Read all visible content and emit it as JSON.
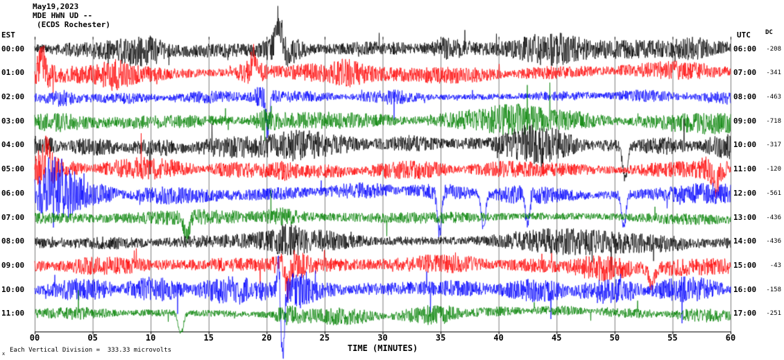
{
  "header": {
    "date": "May19,2023",
    "station": "MDE HWN UD --",
    "location": "(ECDS Rochester)"
  },
  "axis": {
    "left_tz": "EST",
    "right_tz": "UTC",
    "dc_label": "DC"
  },
  "footer": {
    "marker": "x",
    "scale_note": "Each Vertical Division =  333.33 microvolts"
  },
  "chart_data": {
    "type": "line",
    "title": "May19,2023 MDE HWN UD -- (ECDS Rochester)",
    "x_label": "TIME (MINUTES)",
    "x_range": [
      0,
      60
    ],
    "x_ticks": [
      "00",
      "05",
      "10",
      "15",
      "20",
      "25",
      "30",
      "35",
      "40",
      "45",
      "50",
      "55",
      "60"
    ],
    "grid": "vertical lines every 5 minutes",
    "microvolts_per_division": "333.33",
    "colors": {
      "black": "#000000",
      "red": "#ff0000",
      "blue": "#0000ff",
      "green": "#008000"
    },
    "rows": [
      {
        "est": "00:00",
        "utc": "06:00",
        "dc": "-208",
        "color": "black",
        "amp": 12,
        "seed": 101,
        "events": [
          {
            "type": "burst",
            "t": 9.5,
            "w": 2.2,
            "a": 14
          },
          {
            "type": "burst",
            "t": 21.5,
            "w": 1.6,
            "a": 20
          },
          {
            "type": "spike",
            "t": 21.0,
            "w": 0.35,
            "a": 42,
            "dir": -1
          },
          {
            "type": "burst",
            "t": 35.5,
            "w": 1.5,
            "a": 10
          },
          {
            "type": "burst",
            "t": 44.5,
            "w": 3,
            "a": 16
          },
          {
            "type": "burst",
            "t": 57,
            "w": 2,
            "a": 10
          }
        ]
      },
      {
        "est": "01:00",
        "utc": "07:00",
        "dc": "-341",
        "color": "red",
        "amp": 11,
        "seed": 202,
        "events": [
          {
            "type": "burst",
            "t": 0.7,
            "w": 0.7,
            "a": 16
          },
          {
            "type": "spike",
            "t": 0.6,
            "w": 0.3,
            "a": 22,
            "dir": -1
          },
          {
            "type": "burst",
            "t": 7,
            "w": 1.2,
            "a": 10
          },
          {
            "type": "burst",
            "t": 18.6,
            "w": 1.4,
            "a": 14
          },
          {
            "type": "spike",
            "t": 18.9,
            "w": 0.25,
            "a": 26,
            "dir": -1
          },
          {
            "type": "burst",
            "t": 27,
            "w": 1,
            "a": 8
          }
        ]
      },
      {
        "est": "02:00",
        "utc": "08:00",
        "dc": "-463",
        "color": "blue",
        "amp": 9,
        "seed": 303,
        "events": [
          {
            "type": "burst",
            "t": 2.5,
            "w": 1.2,
            "a": 8
          },
          {
            "type": "burst",
            "t": 19.6,
            "w": 0.9,
            "a": 12
          },
          {
            "type": "spike",
            "t": 20.1,
            "w": 0.22,
            "a": 48,
            "dir": 1
          },
          {
            "type": "burst",
            "t": 31,
            "w": 2,
            "a": 5
          }
        ]
      },
      {
        "est": "03:00",
        "utc": "09:00",
        "dc": "-718",
        "color": "green",
        "amp": 12,
        "seed": 404,
        "events": [
          {
            "type": "burst",
            "t": 2.5,
            "w": 2.5,
            "a": 7
          },
          {
            "type": "burst",
            "t": 20,
            "w": 1.2,
            "a": 8
          },
          {
            "type": "burst",
            "t": 41,
            "w": 2,
            "a": 6
          }
        ]
      },
      {
        "est": "04:00",
        "utc": "10:00",
        "dc": "-317",
        "color": "black",
        "amp": 15,
        "seed": 505,
        "events": [
          {
            "type": "burst",
            "t": 22.5,
            "w": 2.5,
            "a": 12
          },
          {
            "type": "burst",
            "t": 43,
            "w": 3,
            "a": 10
          },
          {
            "type": "spike",
            "t": 50.9,
            "w": 0.3,
            "a": 46,
            "dir": 1
          }
        ]
      },
      {
        "est": "05:00",
        "utc": "11:00",
        "dc": "-120",
        "color": "red",
        "amp": 12,
        "seed": 606,
        "events": [
          {
            "type": "burst",
            "t": 0.9,
            "w": 0.8,
            "a": 18
          },
          {
            "type": "spike",
            "t": 1.0,
            "w": 0.3,
            "a": 26,
            "dir": -1
          },
          {
            "type": "burst",
            "t": 21.5,
            "w": 1,
            "a": 10
          },
          {
            "type": "burst",
            "t": 58.5,
            "w": 1.2,
            "a": 14
          },
          {
            "type": "spike",
            "t": 58.8,
            "w": 0.3,
            "a": 22,
            "dir": 1
          }
        ]
      },
      {
        "est": "06:00",
        "utc": "12:00",
        "dc": "-561",
        "color": "blue",
        "amp": 13,
        "seed": 707,
        "events": [
          {
            "type": "burst",
            "t": 1.8,
            "w": 1.7,
            "a": 34
          },
          {
            "type": "spike",
            "t": 1.4,
            "w": 0.5,
            "a": 22,
            "dir": -1
          },
          {
            "type": "spike",
            "t": 34.9,
            "w": 0.25,
            "a": 58,
            "dir": 1
          },
          {
            "type": "spike",
            "t": 38.7,
            "w": 0.25,
            "a": 52,
            "dir": 1
          },
          {
            "type": "spike",
            "t": 42.5,
            "w": 0.22,
            "a": 44,
            "dir": 1
          },
          {
            "type": "spike",
            "t": 50.8,
            "w": 0.25,
            "a": 48,
            "dir": 1
          }
        ]
      },
      {
        "est": "07:00",
        "utc": "13:00",
        "dc": "-436",
        "color": "green",
        "amp": 11,
        "seed": 808,
        "events": [
          {
            "type": "spike",
            "t": 13.1,
            "w": 0.35,
            "a": 26,
            "dir": 1
          },
          {
            "type": "burst",
            "t": 21.5,
            "w": 1.5,
            "a": 7
          }
        ]
      },
      {
        "est": "08:00",
        "utc": "14:00",
        "dc": "-436",
        "color": "black",
        "amp": 13,
        "seed": 909,
        "events": [
          {
            "type": "burst",
            "t": 21.8,
            "w": 1.2,
            "a": 8
          },
          {
            "type": "burst",
            "t": 47,
            "w": 4,
            "a": 6
          }
        ]
      },
      {
        "est": "09:00",
        "utc": "15:00",
        "dc": "-43",
        "color": "red",
        "amp": 14,
        "seed": 1010,
        "events": [
          {
            "type": "burst",
            "t": 22.2,
            "w": 1.8,
            "a": 15
          },
          {
            "type": "spike",
            "t": 21.8,
            "w": 0.3,
            "a": 34,
            "dir": 1
          },
          {
            "type": "burst",
            "t": 49,
            "w": 3,
            "a": 10
          },
          {
            "type": "spike",
            "t": 53.2,
            "w": 0.3,
            "a": 26,
            "dir": 1
          }
        ]
      },
      {
        "est": "10:00",
        "utc": "16:00",
        "dc": "-158",
        "color": "blue",
        "amp": 16,
        "seed": 1111,
        "events": [
          {
            "type": "spike",
            "t": 21.05,
            "w": 0.18,
            "a": 55,
            "dir": -1
          },
          {
            "type": "spike",
            "t": 21.35,
            "w": 0.22,
            "a": 98,
            "dir": 1
          },
          {
            "type": "burst",
            "t": 22.3,
            "w": 1.6,
            "a": 16
          }
        ]
      },
      {
        "est": "11:00",
        "utc": "17:00",
        "dc": "-251",
        "color": "green",
        "amp": 9,
        "seed": 1212,
        "events": [
          {
            "type": "spike",
            "t": 12.6,
            "w": 0.3,
            "a": 30,
            "dir": 1
          },
          {
            "type": "burst",
            "t": 21.8,
            "w": 1.4,
            "a": 9
          },
          {
            "type": "burst",
            "t": 35,
            "w": 2,
            "a": 6
          }
        ]
      }
    ]
  }
}
